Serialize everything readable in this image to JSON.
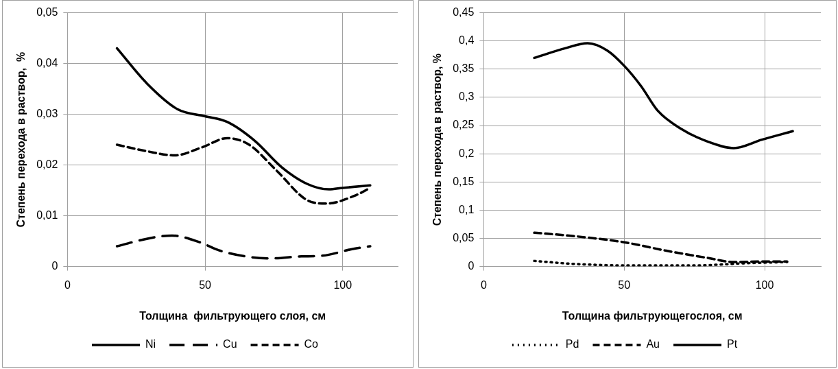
{
  "chart_data": [
    {
      "type": "line",
      "xlabel": "Толщина  фильтрующего слоя, см",
      "ylabel": "Степень перехода в раствор,  %",
      "xlim": [
        0,
        120
      ],
      "xticks": [
        0,
        50,
        100
      ],
      "ylim": [
        0,
        0.05
      ],
      "yticks": [
        0,
        {
          "value": 0.01,
          "label": "0,01"
        },
        {
          "value": 0.02,
          "label": "0,02"
        },
        {
          "value": 0.03,
          "label": "0,03"
        },
        {
          "value": 0.04,
          "label": "0,04"
        },
        {
          "value": 0.05,
          "label": "0,05"
        }
      ],
      "grid": true,
      "legend": "bottom",
      "marker": "none",
      "series": [
        {
          "name": "Ni",
          "color": "#000000",
          "line_style": "solid",
          "x": [
            18,
            29,
            40,
            50,
            58,
            68,
            78,
            87,
            95,
            100,
            110
          ],
          "values": [
            0.043,
            0.036,
            0.031,
            0.0296,
            0.0285,
            0.0248,
            0.0195,
            0.0163,
            0.0152,
            0.0155,
            0.016
          ]
        },
        {
          "name": "Cu",
          "color": "#000000",
          "line_style": "longdash",
          "x": [
            18,
            30,
            38,
            48,
            55,
            66,
            74,
            85,
            92,
            104,
            110
          ],
          "values": [
            0.004,
            0.0056,
            0.0061,
            0.0048,
            0.0032,
            0.0019,
            0.0016,
            0.002,
            0.0021,
            0.0035,
            0.004
          ]
        },
        {
          "name": "Co",
          "color": "#000000",
          "line_style": "dashed",
          "x": [
            18,
            29,
            39,
            49,
            58,
            66,
            76,
            87,
            94,
            105,
            110
          ],
          "values": [
            0.024,
            0.0227,
            0.0219,
            0.0235,
            0.0253,
            0.024,
            0.0189,
            0.0131,
            0.0124,
            0.0141,
            0.0155
          ]
        }
      ]
    },
    {
      "type": "line",
      "xlabel": "Толщина фильтрующегослоя, см",
      "ylabel": "Степень перехода в раствор, %",
      "xlim": [
        0,
        120
      ],
      "xticks": [
        0,
        50,
        100
      ],
      "ylim": [
        0,
        0.45
      ],
      "yticks": [
        0,
        {
          "value": 0.05,
          "label": "0,05"
        },
        {
          "value": 0.1,
          "label": "0,1"
        },
        {
          "value": 0.15,
          "label": "0,15"
        },
        {
          "value": 0.2,
          "label": "0,2"
        },
        {
          "value": 0.25,
          "label": "0,25"
        },
        {
          "value": 0.3,
          "label": "0,3"
        },
        {
          "value": 0.35,
          "label": "0,35"
        },
        {
          "value": 0.4,
          "label": "0,4"
        },
        {
          "value": 0.45,
          "label": "0,45"
        }
      ],
      "grid": true,
      "legend": "bottom",
      "marker": "none",
      "series": [
        {
          "name": "Pd",
          "color": "#000000",
          "line_style": "dotted",
          "x": [
            18,
            31,
            50,
            75,
            94,
            108
          ],
          "values": [
            0.01,
            0.005,
            0.002,
            0.002,
            0.006,
            0.008
          ]
        },
        {
          "name": "Au",
          "color": "#000000",
          "line_style": "dashed",
          "x": [
            18,
            32,
            50,
            65,
            80,
            89,
            99,
            108
          ],
          "values": [
            0.06,
            0.054,
            0.043,
            0.028,
            0.015,
            0.008,
            0.009,
            0.009
          ]
        },
        {
          "name": "Pt",
          "color": "#000000",
          "line_style": "solid",
          "x": [
            18,
            29,
            37,
            44,
            50,
            56,
            62,
            70,
            80,
            89,
            99,
            110
          ],
          "values": [
            0.37,
            0.387,
            0.396,
            0.383,
            0.356,
            0.32,
            0.276,
            0.245,
            0.221,
            0.21,
            0.225,
            0.24
          ]
        }
      ]
    }
  ]
}
